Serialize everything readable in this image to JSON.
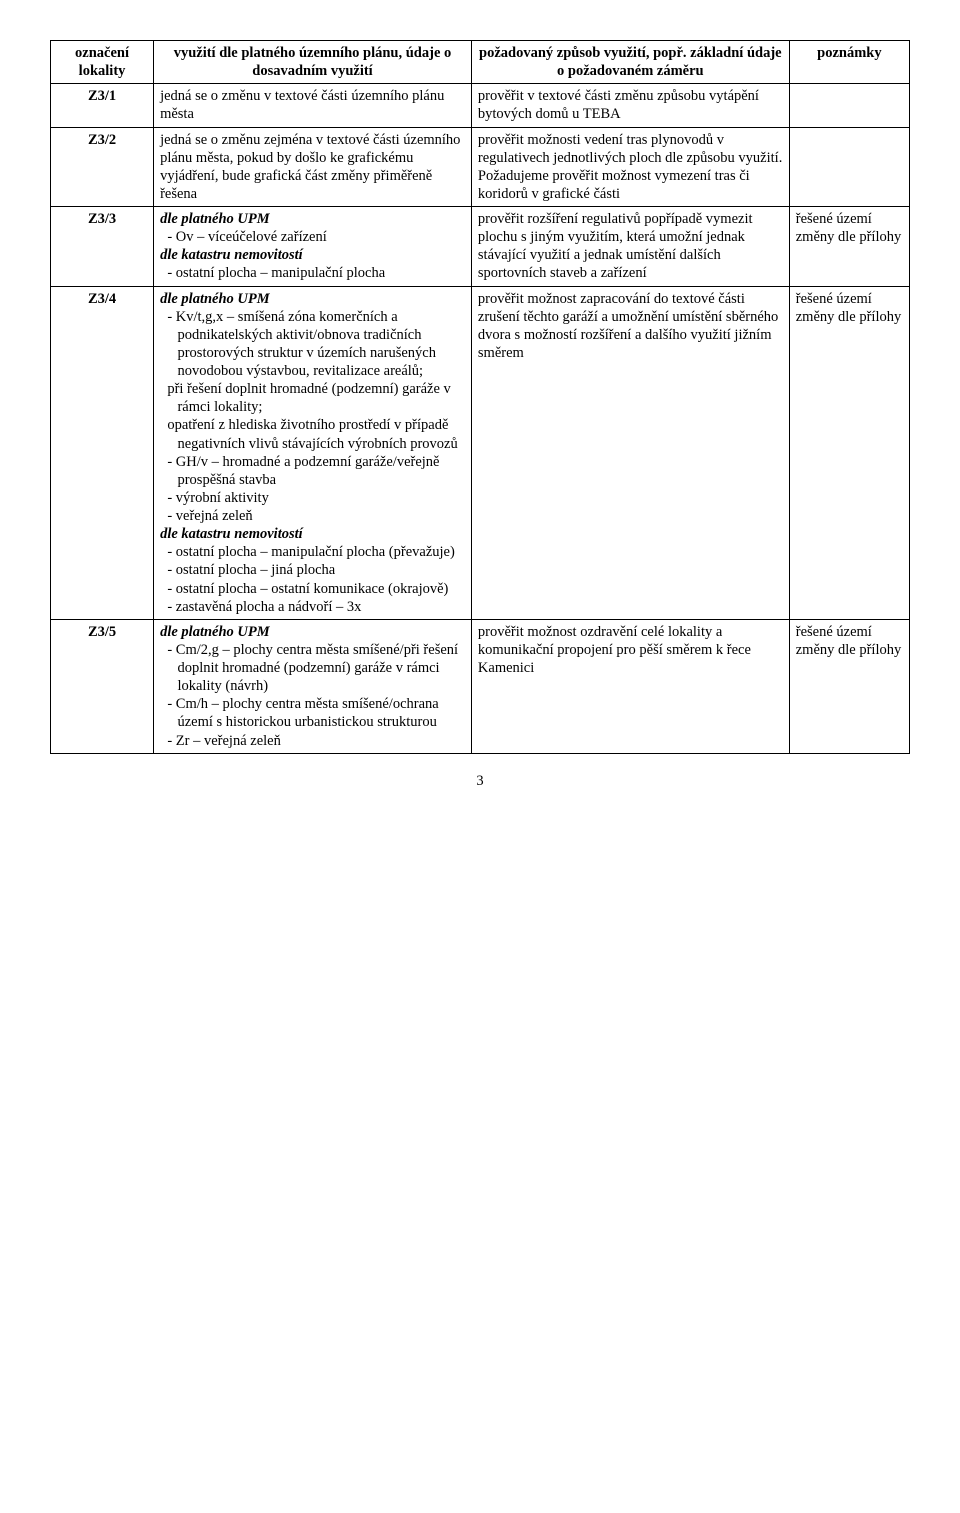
{
  "columns": {
    "widths": [
      "12%",
      "37%",
      "37%",
      "14%"
    ]
  },
  "headers": {
    "col1": "označení lokality",
    "col2": "využití dle platného územního plánu,  údaje o dosavadním využití",
    "col3": "požadovaný způsob využití, popř. základní údaje o požadovaném záměru",
    "col4": "poznámky"
  },
  "rows": [
    {
      "label": "Z3/1",
      "use_title": "jedná se o změnu v textové části územního plánu města",
      "use_lines": [],
      "req": "prověřit v textové části změnu způsobu vytápění bytových domů u TEBA",
      "note": ""
    },
    {
      "label": "Z3/2",
      "use_title": "jedná se o změnu zejména v textové části územního plánu města, pokud by došlo ke grafickému vyjádření, bude grafická část změny přiměřeně řešena",
      "use_lines": [],
      "req": "prověřit možnosti vedení tras plynovodů v regulativech jednotlivých ploch dle  způsobu využití. Požadujeme prověřit možnost vymezení tras či koridorů v grafické části",
      "note": ""
    },
    {
      "label": "Z3/3",
      "use_title_bi": "dle platného UPM",
      "use_lines": [
        "- Ov – víceúčelové zařízení"
      ],
      "use_title_bi2": "dle katastru nemovitostí",
      "use_lines2": [
        "- ostatní plocha – manipulační plocha"
      ],
      "req": "prověřit rozšíření regulativů popřípadě vymezit plochu s jiným využitím, která umožní jednak stávající využití a jednak umístění dalších sportovních staveb a zařízení",
      "note": "řešené území změny dle přílohy"
    },
    {
      "label": "Z3/4",
      "use_title_bi": "dle platného UPM",
      "use_lines": [
        "- Kv/t,g,x – smíšená zóna komerčních a podnikatelských aktivit/obnova tradičních prostorových struktur v územích narušených novodobou výstavbou, revitalizace areálů;",
        "  při řešení doplnit hromadné (podzemní) garáže v rámci lokality;",
        "  opatření z hlediska životního prostředí v případě negativních vlivů stávajících výrobních provozů",
        "- GH/v – hromadné a podzemní garáže/veřejně prospěšná stavba",
        "- výrobní aktivity",
        "- veřejná zeleň"
      ],
      "use_title_bi2": "dle katastru nemovitostí",
      "use_lines2": [
        "- ostatní plocha – manipulační plocha (převažuje)",
        "- ostatní plocha – jiná plocha",
        "- ostatní plocha – ostatní komunikace (okrajově)",
        "- zastavěná plocha a nádvoří – 3x"
      ],
      "req": "prověřit možnost zapracování do textové části zrušení těchto garáží a umožnění umístění sběrného dvora s možností rozšíření a dalšího využití jižním směrem",
      "note": "řešené území změny dle přílohy"
    },
    {
      "label": "Z3/5",
      "use_title_bi": "dle platného UPM",
      "use_lines": [
        "- Cm/2,g – plochy centra města smíšené/při řešení doplnit hromadné (podzemní) garáže v rámci lokality (návrh)",
        "- Cm/h – plochy centra města smíšené/ochrana území s historickou urbanistickou strukturou",
        "- Zr – veřejná zeleň"
      ],
      "req": "prověřit možnost ozdravění celé lokality a komunikační propojení pro pěší směrem k řece Kamenici",
      "note": "řešené území změny dle přílohy"
    }
  ],
  "page_number": "3"
}
